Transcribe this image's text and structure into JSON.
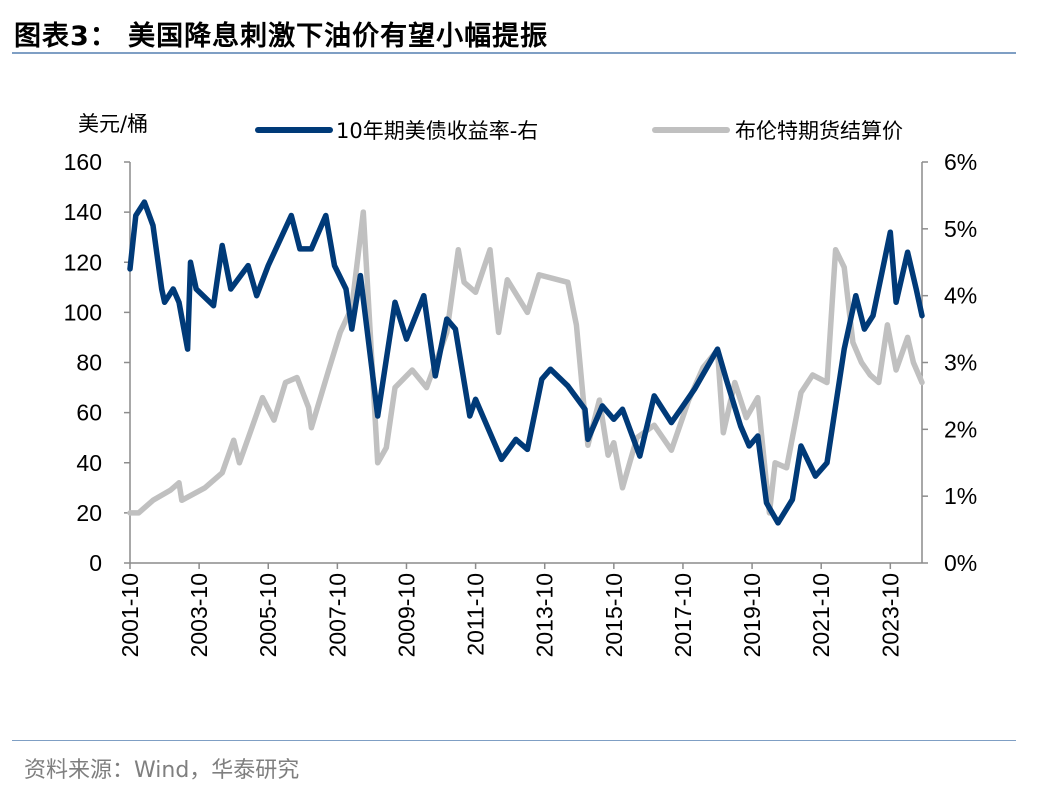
{
  "title": "图表3：  美国降息刺激下油价有望小幅提振",
  "source": "资料来源：Wind，华泰研究",
  "chart_data": {
    "type": "line",
    "title": "",
    "ylabel_left": "美元/桶",
    "ylim_left": [
      0,
      160
    ],
    "yticks_left": [
      "0",
      "20",
      "40",
      "60",
      "80",
      "100",
      "120",
      "140",
      "160"
    ],
    "ylim_right": [
      0,
      6
    ],
    "yticks_right": [
      "0%",
      "1%",
      "2%",
      "3%",
      "4%",
      "5%",
      "6%"
    ],
    "xlim": [
      "2001-10",
      "2024-09"
    ],
    "xticks": [
      "2001-10",
      "2003-10",
      "2005-10",
      "2007-10",
      "2009-10",
      "2011-10",
      "2013-10",
      "2015-10",
      "2017-10",
      "2019-10",
      "2021-10",
      "2023-10"
    ],
    "legend_position": "top",
    "grid": false,
    "series": [
      {
        "name": "10年期美债收益率-右",
        "axis": "right",
        "unit": "%",
        "color": "#003a78",
        "points": [
          [
            "2001-10",
            4.4
          ],
          [
            "2001-12",
            5.2
          ],
          [
            "2002-03",
            5.4
          ],
          [
            "2002-06",
            5.05
          ],
          [
            "2002-09",
            4.1
          ],
          [
            "2002-10",
            3.9
          ],
          [
            "2003-01",
            4.1
          ],
          [
            "2003-03",
            3.9
          ],
          [
            "2003-06",
            3.2
          ],
          [
            "2003-07",
            4.5
          ],
          [
            "2003-09",
            4.1
          ],
          [
            "2004-03",
            3.85
          ],
          [
            "2004-06",
            4.75
          ],
          [
            "2004-09",
            4.1
          ],
          [
            "2005-03",
            4.45
          ],
          [
            "2005-06",
            4.0
          ],
          [
            "2005-10",
            4.45
          ],
          [
            "2006-06",
            5.2
          ],
          [
            "2006-09",
            4.7
          ],
          [
            "2007-01",
            4.7
          ],
          [
            "2007-06",
            5.2
          ],
          [
            "2007-09",
            4.45
          ],
          [
            "2008-01",
            4.1
          ],
          [
            "2008-03",
            3.5
          ],
          [
            "2008-06",
            4.3
          ],
          [
            "2008-12",
            2.2
          ],
          [
            "2009-06",
            3.9
          ],
          [
            "2009-10",
            3.35
          ],
          [
            "2010-04",
            4.0
          ],
          [
            "2010-08",
            2.8
          ],
          [
            "2010-12",
            3.65
          ],
          [
            "2011-03",
            3.5
          ],
          [
            "2011-08",
            2.2
          ],
          [
            "2011-10",
            2.45
          ],
          [
            "2012-01",
            2.15
          ],
          [
            "2012-07",
            1.55
          ],
          [
            "2012-12",
            1.85
          ],
          [
            "2013-04",
            1.7
          ],
          [
            "2013-09",
            2.75
          ],
          [
            "2013-12",
            2.9
          ],
          [
            "2014-06",
            2.65
          ],
          [
            "2014-12",
            2.3
          ],
          [
            "2015-01",
            1.85
          ],
          [
            "2015-06",
            2.35
          ],
          [
            "2015-10",
            2.15
          ],
          [
            "2016-01",
            2.3
          ],
          [
            "2016-07",
            1.6
          ],
          [
            "2016-12",
            2.5
          ],
          [
            "2017-06",
            2.1
          ],
          [
            "2017-10",
            2.35
          ],
          [
            "2018-02",
            2.6
          ],
          [
            "2018-10",
            3.2
          ],
          [
            "2019-01",
            2.75
          ],
          [
            "2019-06",
            2.05
          ],
          [
            "2019-09",
            1.75
          ],
          [
            "2019-12",
            1.9
          ],
          [
            "2020-03",
            0.9
          ],
          [
            "2020-07",
            0.6
          ],
          [
            "2020-12",
            0.95
          ],
          [
            "2021-03",
            1.75
          ],
          [
            "2021-08",
            1.3
          ],
          [
            "2021-12",
            1.5
          ],
          [
            "2022-03",
            2.35
          ],
          [
            "2022-06",
            3.2
          ],
          [
            "2022-10",
            4.0
          ],
          [
            "2023-01",
            3.5
          ],
          [
            "2023-04",
            3.7
          ],
          [
            "2023-10",
            4.95
          ],
          [
            "2023-12",
            3.9
          ],
          [
            "2024-04",
            4.65
          ],
          [
            "2024-07",
            4.1
          ],
          [
            "2024-09",
            3.7
          ]
        ]
      },
      {
        "name": "布伦特期货结算价",
        "axis": "left",
        "unit": "美元/桶",
        "color": "#c0c0c0",
        "points": [
          [
            "2001-10",
            20
          ],
          [
            "2002-01",
            20
          ],
          [
            "2002-06",
            25
          ],
          [
            "2002-12",
            29
          ],
          [
            "2003-03",
            32
          ],
          [
            "2003-04",
            25
          ],
          [
            "2003-12",
            30
          ],
          [
            "2004-06",
            36
          ],
          [
            "2004-10",
            49
          ],
          [
            "2004-12",
            40
          ],
          [
            "2005-04",
            53
          ],
          [
            "2005-08",
            66
          ],
          [
            "2005-12",
            57
          ],
          [
            "2006-04",
            72
          ],
          [
            "2006-08",
            74
          ],
          [
            "2006-12",
            62
          ],
          [
            "2007-01",
            54
          ],
          [
            "2007-07",
            77
          ],
          [
            "2007-11",
            92
          ],
          [
            "2008-03",
            102
          ],
          [
            "2008-07",
            140
          ],
          [
            "2008-12",
            40
          ],
          [
            "2009-03",
            46
          ],
          [
            "2009-06",
            70
          ],
          [
            "2009-12",
            77
          ],
          [
            "2010-05",
            70
          ],
          [
            "2010-12",
            92
          ],
          [
            "2011-04",
            125
          ],
          [
            "2011-06",
            112
          ],
          [
            "2011-10",
            108
          ],
          [
            "2012-03",
            125
          ],
          [
            "2012-06",
            92
          ],
          [
            "2012-09",
            113
          ],
          [
            "2013-04",
            100
          ],
          [
            "2013-08",
            115
          ],
          [
            "2014-06",
            112
          ],
          [
            "2014-09",
            95
          ],
          [
            "2014-12",
            58
          ],
          [
            "2015-01",
            47
          ],
          [
            "2015-05",
            65
          ],
          [
            "2015-08",
            43
          ],
          [
            "2015-10",
            48
          ],
          [
            "2016-01",
            30
          ],
          [
            "2016-06",
            50
          ],
          [
            "2016-12",
            55
          ],
          [
            "2017-06",
            45
          ],
          [
            "2017-12",
            65
          ],
          [
            "2018-05",
            78
          ],
          [
            "2018-10",
            85
          ],
          [
            "2018-12",
            52
          ],
          [
            "2019-04",
            72
          ],
          [
            "2019-08",
            58
          ],
          [
            "2019-12",
            66
          ],
          [
            "2020-04",
            20
          ],
          [
            "2020-06",
            40
          ],
          [
            "2020-10",
            38
          ],
          [
            "2021-03",
            68
          ],
          [
            "2021-07",
            75
          ],
          [
            "2021-12",
            72
          ],
          [
            "2022-03",
            125
          ],
          [
            "2022-06",
            118
          ],
          [
            "2022-09",
            88
          ],
          [
            "2022-12",
            80
          ],
          [
            "2023-03",
            75
          ],
          [
            "2023-06",
            72
          ],
          [
            "2023-09",
            95
          ],
          [
            "2023-12",
            77
          ],
          [
            "2024-04",
            90
          ],
          [
            "2024-06",
            80
          ],
          [
            "2024-09",
            72
          ]
        ]
      }
    ]
  }
}
